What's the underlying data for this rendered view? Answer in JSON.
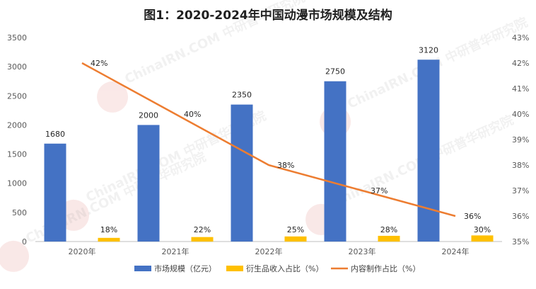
{
  "chart_data": {
    "type": "bar",
    "title": "图1：2020-2024年中国动漫市场规模及结构",
    "categories": [
      "2020年",
      "2021年",
      "2022年",
      "2023年",
      "2024年"
    ],
    "series": [
      {
        "name": "市场规模（亿元）",
        "type": "bar",
        "axis": "left",
        "color": "#4472C4",
        "values": [
          1680,
          2000,
          2350,
          2750,
          3120
        ]
      },
      {
        "name": "衍生品收入占比（%）",
        "type": "bar",
        "axis": "right-offset",
        "color": "#FFC000",
        "values": [
          18,
          22,
          25,
          28,
          30
        ]
      },
      {
        "name": "内容制作占比（%）",
        "type": "line",
        "axis": "right",
        "color": "#ED7D31",
        "values": [
          42,
          40,
          38,
          37,
          36
        ]
      }
    ],
    "y_left": {
      "min": 0,
      "max": 3500,
      "step": 500
    },
    "y_right": {
      "min": 35,
      "max": 43,
      "step": 1,
      "suffix": "%"
    },
    "grid": false,
    "legend": "bottom",
    "watermark": "ChinaIRN.COM 中研普华研究院"
  }
}
